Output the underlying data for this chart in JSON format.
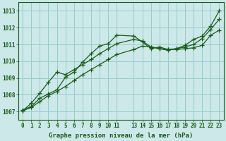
{
  "xlabel": "Graphe pression niveau de la mer (hPa)",
  "bg_color": "#cce8e8",
  "grid_color": "#99cccc",
  "line_color": "#1a5c1a",
  "xlim": [
    -0.5,
    23.5
  ],
  "ylim": [
    1006.5,
    1013.5
  ],
  "yticks": [
    1007,
    1008,
    1009,
    1010,
    1011,
    1012,
    1013
  ],
  "xticks": [
    0,
    1,
    2,
    3,
    4,
    5,
    6,
    7,
    8,
    9,
    10,
    11,
    13,
    14,
    15,
    16,
    17,
    18,
    19,
    20,
    21,
    22,
    23
  ],
  "line1_x": [
    0,
    1,
    2,
    3,
    4,
    5,
    6,
    7,
    8,
    9,
    10,
    11,
    13,
    14,
    15,
    16,
    17,
    18,
    19,
    20,
    21,
    22,
    23
  ],
  "line1_y": [
    1007.1,
    1007.3,
    1007.8,
    1008.05,
    1008.3,
    1009.05,
    1009.35,
    1009.95,
    1010.45,
    1010.9,
    1011.05,
    1011.55,
    1011.5,
    1011.15,
    1010.75,
    1010.85,
    1010.7,
    1010.75,
    1010.95,
    1011.3,
    1011.5,
    1012.1,
    1013.0
  ],
  "line2_x": [
    0,
    1,
    2,
    3,
    4,
    5,
    6,
    7,
    8,
    9,
    10,
    11,
    13,
    14,
    15,
    16,
    17,
    18,
    19,
    20,
    21,
    22,
    23
  ],
  "line2_y": [
    1007.05,
    1007.5,
    1008.1,
    1008.75,
    1009.35,
    1009.2,
    1009.5,
    1009.8,
    1010.1,
    1010.45,
    1010.75,
    1011.05,
    1011.3,
    1011.2,
    1010.85,
    1010.75,
    1010.65,
    1010.75,
    1010.85,
    1011.0,
    1011.35,
    1011.9,
    1012.5
  ],
  "line3_x": [
    0,
    1,
    2,
    3,
    4,
    5,
    6,
    7,
    8,
    9,
    10,
    11,
    13,
    14,
    15,
    16,
    17,
    18,
    19,
    20,
    21,
    22,
    23
  ],
  "line3_y": [
    1007.05,
    1007.25,
    1007.6,
    1007.95,
    1008.2,
    1008.5,
    1008.85,
    1009.2,
    1009.5,
    1009.8,
    1010.1,
    1010.4,
    1010.7,
    1010.9,
    1010.85,
    1010.75,
    1010.7,
    1010.7,
    1010.75,
    1010.8,
    1010.95,
    1011.55,
    1011.85
  ]
}
